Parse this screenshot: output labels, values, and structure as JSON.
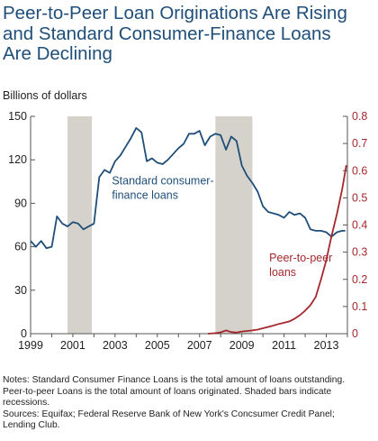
{
  "title_lines": [
    "Peer-to-Peer Loan Originations Are Rising",
    "and Standard Consumer-Finance Loans",
    "Are Declining"
  ],
  "notes": {
    "line1": "Notes: Standard Consumer Finance Loans is the total amount of loans outstanding.",
    "line2": "Peer-to-peer Loans is the total amount of loans originated. Shaded bars indicate",
    "line3": "recessions.",
    "line4": "Sources: Equifax; Federal Reserve Bank of New York's Concsumer Credit Panel;",
    "line5": "Lending Club."
  },
  "colors": {
    "title": "#1f4e79",
    "consumer": "#1f4e79",
    "p2p": "#a4282d",
    "recession": "#d4d2cb"
  },
  "chart_data": {
    "type": "line",
    "xlim": [
      1999,
      2014
    ],
    "x_ticks": [
      "1999",
      "2001",
      "2003",
      "2005",
      "2007",
      "2009",
      "2011",
      "2013"
    ],
    "y_left": {
      "label": "Billions of dollars",
      "ylim": [
        0,
        150
      ],
      "ticks": [
        "0",
        "30",
        "60",
        "90",
        "120",
        "150"
      ]
    },
    "y_right": {
      "ylim": [
        0,
        0.8
      ],
      "ticks": [
        "0",
        "0.1",
        "0.2",
        "0.3",
        "0.4",
        "0.5",
        "0.6",
        "0.7",
        "0.8"
      ]
    },
    "recessions": [
      [
        2000.75,
        2001.9
      ],
      [
        2007.75,
        2009.5
      ]
    ],
    "annotations": [
      {
        "text_lines": [
          "Standard consumer-",
          "finance loans"
        ],
        "series": "consumer"
      },
      {
        "text_lines": [
          "Peer-to-peer",
          "loans"
        ],
        "series": "p2p"
      }
    ],
    "series": [
      {
        "name": "Standard consumer-finance loans",
        "axis": "left",
        "color": "#1f4e79",
        "x": [
          1999.0,
          1999.25,
          1999.5,
          1999.75,
          2000.0,
          2000.25,
          2000.5,
          2000.75,
          2001.0,
          2001.25,
          2001.5,
          2001.75,
          2002.0,
          2002.25,
          2002.5,
          2002.75,
          2003.0,
          2003.25,
          2003.5,
          2003.75,
          2004.0,
          2004.25,
          2004.5,
          2004.75,
          2005.0,
          2005.25,
          2005.5,
          2005.75,
          2006.0,
          2006.25,
          2006.5,
          2006.75,
          2007.0,
          2007.25,
          2007.5,
          2007.75,
          2008.0,
          2008.25,
          2008.5,
          2008.75,
          2009.0,
          2009.25,
          2009.5,
          2009.75,
          2010.0,
          2010.25,
          2010.5,
          2010.75,
          2011.0,
          2011.25,
          2011.5,
          2011.75,
          2012.0,
          2012.25,
          2012.5,
          2012.75,
          2013.0,
          2013.25,
          2013.5,
          2013.75,
          2013.9
        ],
        "y": [
          64,
          60,
          64,
          59,
          60,
          81,
          76,
          74,
          77,
          76,
          72,
          74,
          76,
          108,
          113,
          111,
          119,
          123,
          129,
          135,
          142,
          139,
          119,
          121,
          118,
          117,
          120,
          124,
          128,
          131,
          138,
          138,
          140,
          130,
          136,
          138,
          137,
          127,
          136,
          133,
          116,
          109,
          104,
          98,
          88,
          84,
          83,
          82,
          80,
          84,
          82,
          83,
          80,
          72,
          71,
          71,
          70,
          67,
          70,
          71,
          71
        ]
      },
      {
        "name": "Peer-to-peer loans",
        "axis": "right",
        "color": "#a4282d",
        "x": [
          2007.4,
          2007.75,
          2008.0,
          2008.25,
          2008.5,
          2008.75,
          2009.0,
          2009.25,
          2009.5,
          2009.75,
          2010.0,
          2010.25,
          2010.5,
          2010.75,
          2011.0,
          2011.25,
          2011.5,
          2011.75,
          2012.0,
          2012.25,
          2012.5,
          2012.75,
          2013.0,
          2013.25,
          2013.5,
          2013.75,
          2013.95
        ],
        "y": [
          0.0,
          0.002,
          0.005,
          0.012,
          0.006,
          0.004,
          0.008,
          0.01,
          0.012,
          0.015,
          0.02,
          0.025,
          0.03,
          0.036,
          0.04,
          0.045,
          0.055,
          0.068,
          0.085,
          0.105,
          0.135,
          0.2,
          0.27,
          0.36,
          0.44,
          0.53,
          0.62
        ]
      }
    ]
  }
}
